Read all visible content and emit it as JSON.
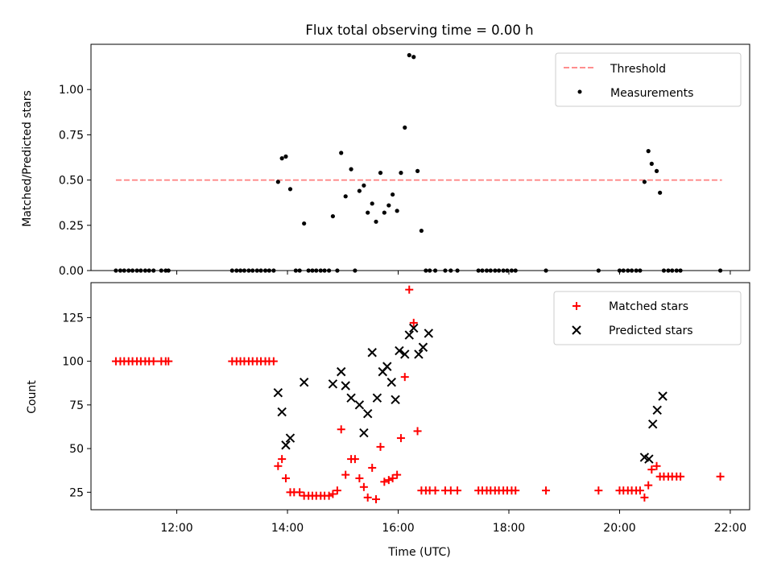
{
  "title": "Flux total observing time = 0.00 h",
  "chart_data": [
    {
      "type": "scatter",
      "ylabel": "Matched/Predicted stars",
      "xlim_hours": [
        10.45,
        22.35
      ],
      "ylim": [
        0,
        1.25
      ],
      "yticks": [
        "0.00",
        "0.25",
        "0.50",
        "0.75",
        "1.00"
      ],
      "threshold": {
        "name": "Threshold",
        "value": 0.5,
        "x_start_hours": 10.9,
        "x_end_hours": 21.85,
        "color": "#ff7f7f"
      },
      "legend": {
        "position": "top-right",
        "entries": [
          "Threshold",
          "Measurements"
        ]
      },
      "series": [
        {
          "name": "Measurements",
          "color": "#000000",
          "x_hours": [
            10.9,
            10.98,
            11.05,
            11.13,
            11.2,
            11.28,
            11.35,
            11.43,
            11.5,
            11.58,
            11.72,
            11.8,
            11.85,
            13.0,
            13.08,
            13.15,
            13.22,
            13.3,
            13.37,
            13.45,
            13.52,
            13.6,
            13.67,
            13.75,
            13.83,
            13.9,
            13.97,
            14.05,
            14.15,
            14.22,
            14.3,
            14.38,
            14.45,
            14.52,
            14.6,
            14.67,
            14.75,
            14.82,
            14.9,
            14.97,
            15.05,
            15.15,
            15.22,
            15.3,
            15.38,
            15.45,
            15.53,
            15.6,
            15.68,
            15.75,
            15.83,
            15.9,
            15.98,
            16.05,
            16.12,
            16.2,
            16.28,
            16.35,
            16.42,
            16.5,
            16.57,
            16.67,
            16.85,
            16.95,
            17.07,
            17.45,
            17.52,
            17.6,
            17.67,
            17.75,
            17.82,
            17.9,
            17.97,
            18.05,
            18.12,
            18.67,
            19.62,
            20.0,
            20.07,
            20.15,
            20.22,
            20.3,
            20.37,
            20.45,
            20.52,
            20.58,
            20.67,
            20.73,
            20.8,
            20.88,
            20.95,
            21.03,
            21.1,
            21.82
          ],
          "values": [
            0,
            0,
            0,
            0,
            0,
            0,
            0,
            0,
            0,
            0,
            0,
            0,
            0,
            0,
            0,
            0,
            0,
            0,
            0,
            0,
            0,
            0,
            0,
            0,
            0.49,
            0.62,
            0.63,
            0.45,
            0,
            0,
            0.26,
            0,
            0,
            0,
            0,
            0,
            0,
            0.3,
            0,
            0.65,
            0.41,
            0.56,
            0,
            0.44,
            0.47,
            0.32,
            0.37,
            0.27,
            0.54,
            0.32,
            0.36,
            0.42,
            0.33,
            0.54,
            0.79,
            1.19,
            1.18,
            0.55,
            0.22,
            0,
            0,
            0,
            0,
            0,
            0,
            0,
            0,
            0,
            0,
            0,
            0,
            0,
            0,
            0,
            0,
            0,
            0,
            0,
            0,
            0,
            0,
            0,
            0,
            0.49,
            0.66,
            0.59,
            0.55,
            0.43,
            0,
            0,
            0,
            0,
            0,
            0
          ]
        }
      ]
    },
    {
      "type": "scatter",
      "ylabel": "Count",
      "xlabel": "Time (UTC)",
      "xlim_hours": [
        10.45,
        22.35
      ],
      "ylim": [
        15,
        145
      ],
      "yticks": [
        "25",
        "50",
        "75",
        "100",
        "125"
      ],
      "xticks": [
        "12:00",
        "14:00",
        "16:00",
        "18:00",
        "20:00",
        "22:00"
      ],
      "xtick_hours": [
        12,
        14,
        16,
        18,
        20,
        22
      ],
      "legend": {
        "position": "top-right",
        "entries": [
          "Matched stars",
          "Predicted stars"
        ]
      },
      "series": [
        {
          "name": "Matched stars",
          "marker": "plus",
          "color": "#ff0000",
          "x_hours": [
            10.9,
            10.98,
            11.05,
            11.13,
            11.2,
            11.28,
            11.35,
            11.43,
            11.5,
            11.58,
            11.72,
            11.8,
            11.85,
            13.0,
            13.08,
            13.15,
            13.22,
            13.3,
            13.37,
            13.45,
            13.52,
            13.6,
            13.67,
            13.75,
            13.83,
            13.9,
            13.97,
            14.05,
            14.12,
            14.22,
            14.3,
            14.38,
            14.45,
            14.52,
            14.6,
            14.67,
            14.75,
            14.82,
            14.9,
            14.97,
            15.05,
            15.15,
            15.22,
            15.3,
            15.38,
            15.45,
            15.53,
            15.6,
            15.68,
            15.75,
            15.83,
            15.9,
            15.98,
            16.05,
            16.12,
            16.2,
            16.28,
            16.35,
            16.42,
            16.5,
            16.57,
            16.67,
            16.85,
            16.95,
            17.07,
            17.45,
            17.52,
            17.6,
            17.67,
            17.75,
            17.82,
            17.9,
            17.97,
            18.05,
            18.12,
            18.67,
            19.62,
            20.0,
            20.07,
            20.15,
            20.22,
            20.3,
            20.37,
            20.45,
            20.52,
            20.58,
            20.67,
            20.73,
            20.8,
            20.88,
            20.95,
            21.03,
            21.1,
            21.82
          ],
          "values": [
            100,
            100,
            100,
            100,
            100,
            100,
            100,
            100,
            100,
            100,
            100,
            100,
            100,
            100,
            100,
            100,
            100,
            100,
            100,
            100,
            100,
            100,
            100,
            100,
            40,
            44,
            33,
            25,
            25,
            25,
            23,
            23,
            23,
            23,
            23,
            23,
            23,
            24,
            26,
            61,
            35,
            44,
            44,
            33,
            28,
            22,
            39,
            21,
            51,
            31,
            32,
            33,
            35,
            56,
            91,
            141,
            122,
            60,
            26,
            26,
            26,
            26,
            26,
            26,
            26,
            26,
            26,
            26,
            26,
            26,
            26,
            26,
            26,
            26,
            26,
            26,
            26,
            26,
            26,
            26,
            26,
            26,
            26,
            22,
            29,
            38,
            40,
            34,
            34,
            34,
            34,
            34,
            34,
            34
          ]
        },
        {
          "name": "Predicted stars",
          "marker": "x",
          "color": "#000000",
          "x_hours": [
            13.83,
            13.9,
            13.97,
            14.05,
            14.3,
            14.82,
            14.97,
            15.05,
            15.15,
            15.3,
            15.38,
            15.45,
            15.53,
            15.62,
            15.72,
            15.8,
            15.88,
            15.95,
            16.02,
            16.12,
            16.2,
            16.28,
            16.37,
            16.45,
            16.55,
            20.45,
            20.53,
            20.6,
            20.68,
            20.78
          ],
          "values": [
            82,
            71,
            52,
            56,
            88,
            87,
            94,
            86,
            79,
            75,
            59,
            70,
            105,
            79,
            94,
            97,
            88,
            78,
            106,
            104,
            115,
            119,
            104,
            108,
            116,
            45,
            44,
            64,
            72,
            80
          ]
        }
      ]
    }
  ]
}
